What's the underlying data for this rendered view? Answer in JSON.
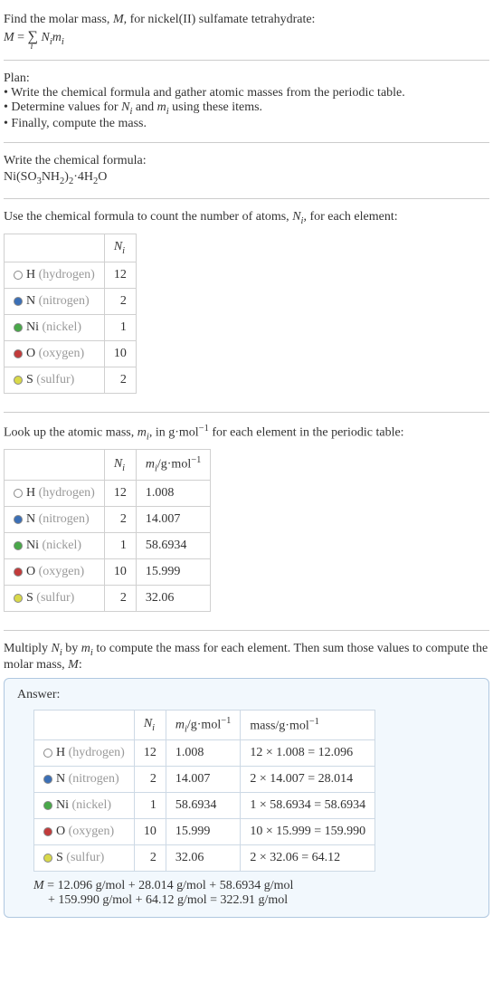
{
  "intro": {
    "line1_prefix": "Find the molar mass, ",
    "line1_M": "M",
    "line1_suffix": ", for nickel(II) sulfamate tetrahydrate:",
    "eq_lhs": "M",
    "eq_eq": " = ",
    "eq_sigma": "∑",
    "eq_sub": "i",
    "eq_rhs1": "N",
    "eq_rhs1_sub": "i",
    "eq_rhs2": "m",
    "eq_rhs2_sub": "i"
  },
  "plan": {
    "title": "Plan:",
    "items": [
      "Write the chemical formula and gather atomic masses from the periodic table.",
      "Determine values for Nᵢ and mᵢ using these items.",
      "Finally, compute the mass."
    ],
    "item0": "Write the chemical formula and gather atomic masses from the periodic table.",
    "item1_a": "Determine values for ",
    "item1_N": "N",
    "item1_Ni": "i",
    "item1_b": " and ",
    "item1_m": "m",
    "item1_mi": "i",
    "item1_c": " using these items.",
    "item2": "Finally, compute the mass."
  },
  "formula_section": {
    "title": "Write the chemical formula:",
    "formula_parts": {
      "a": "Ni(SO",
      "b": "3",
      "c": "NH",
      "d": "2",
      "e": ")",
      "f": "2",
      "g": "·4H",
      "h": "2",
      "i": "O"
    }
  },
  "count_section": {
    "text_a": "Use the chemical formula to count the number of atoms, ",
    "text_N": "N",
    "text_Ni": "i",
    "text_b": ", for each element:",
    "header_N": "N",
    "header_Ni": "i",
    "rows": [
      {
        "dot": "#ffffff",
        "sym": "H",
        "name": " (hydrogen)",
        "n": "12"
      },
      {
        "dot": "#3b6fb6",
        "sym": "N",
        "name": " (nitrogen)",
        "n": "2"
      },
      {
        "dot": "#49a849",
        "sym": "Ni",
        "name": " (nickel)",
        "n": "1"
      },
      {
        "dot": "#c23b3b",
        "sym": "O",
        "name": " (oxygen)",
        "n": "10"
      },
      {
        "dot": "#d9d94a",
        "sym": "S",
        "name": " (sulfur)",
        "n": "2"
      }
    ]
  },
  "mass_section": {
    "text_a": "Look up the atomic mass, ",
    "text_m": "m",
    "text_mi": "i",
    "text_b": ", in g·mol",
    "text_exp": "−1",
    "text_c": " for each element in the periodic table:",
    "header_N": "N",
    "header_Ni": "i",
    "header_m": "m",
    "header_mi": "i",
    "header_unit_a": "/g·mol",
    "header_unit_exp": "−1",
    "rows": [
      {
        "dot": "#ffffff",
        "sym": "H",
        "name": " (hydrogen)",
        "n": "12",
        "m": "1.008"
      },
      {
        "dot": "#3b6fb6",
        "sym": "N",
        "name": " (nitrogen)",
        "n": "2",
        "m": "14.007"
      },
      {
        "dot": "#49a849",
        "sym": "Ni",
        "name": " (nickel)",
        "n": "1",
        "m": "58.6934"
      },
      {
        "dot": "#c23b3b",
        "sym": "O",
        "name": " (oxygen)",
        "n": "10",
        "m": "15.999"
      },
      {
        "dot": "#d9d94a",
        "sym": "S",
        "name": " (sulfur)",
        "n": "2",
        "m": "32.06"
      }
    ]
  },
  "multiply_section": {
    "text_a": "Multiply ",
    "text_N": "N",
    "text_Ni": "i",
    "text_b": " by ",
    "text_m": "m",
    "text_mi": "i",
    "text_c": " to compute the mass for each element. Then sum those values to compute the molar mass, ",
    "text_M": "M",
    "text_d": ":"
  },
  "answer": {
    "label": "Answer:",
    "header_N": "N",
    "header_Ni": "i",
    "header_m": "m",
    "header_mi": "i",
    "header_munit_a": "/g·mol",
    "header_munit_exp": "−1",
    "header_mass_a": "mass/g·mol",
    "header_mass_exp": "−1",
    "rows": [
      {
        "dot": "#ffffff",
        "sym": "H",
        "name": " (hydrogen)",
        "n": "12",
        "m": "1.008",
        "calc": "12 × 1.008 = 12.096"
      },
      {
        "dot": "#3b6fb6",
        "sym": "N",
        "name": " (nitrogen)",
        "n": "2",
        "m": "14.007",
        "calc": "2 × 14.007 = 28.014"
      },
      {
        "dot": "#49a849",
        "sym": "Ni",
        "name": " (nickel)",
        "n": "1",
        "m": "58.6934",
        "calc": "1 × 58.6934 = 58.6934"
      },
      {
        "dot": "#c23b3b",
        "sym": "O",
        "name": " (oxygen)",
        "n": "10",
        "m": "15.999",
        "calc": "10 × 15.999 = 159.990"
      },
      {
        "dot": "#d9d94a",
        "sym": "S",
        "name": " (sulfur)",
        "n": "2",
        "m": "32.06",
        "calc": "2 × 32.06 = 64.12"
      }
    ],
    "final_a": "M",
    "final_b": " = 12.096 g/mol + 28.014 g/mol + 58.6934 g/mol",
    "final_c": "+ 159.990 g/mol + 64.12 g/mol = 322.91 g/mol"
  }
}
